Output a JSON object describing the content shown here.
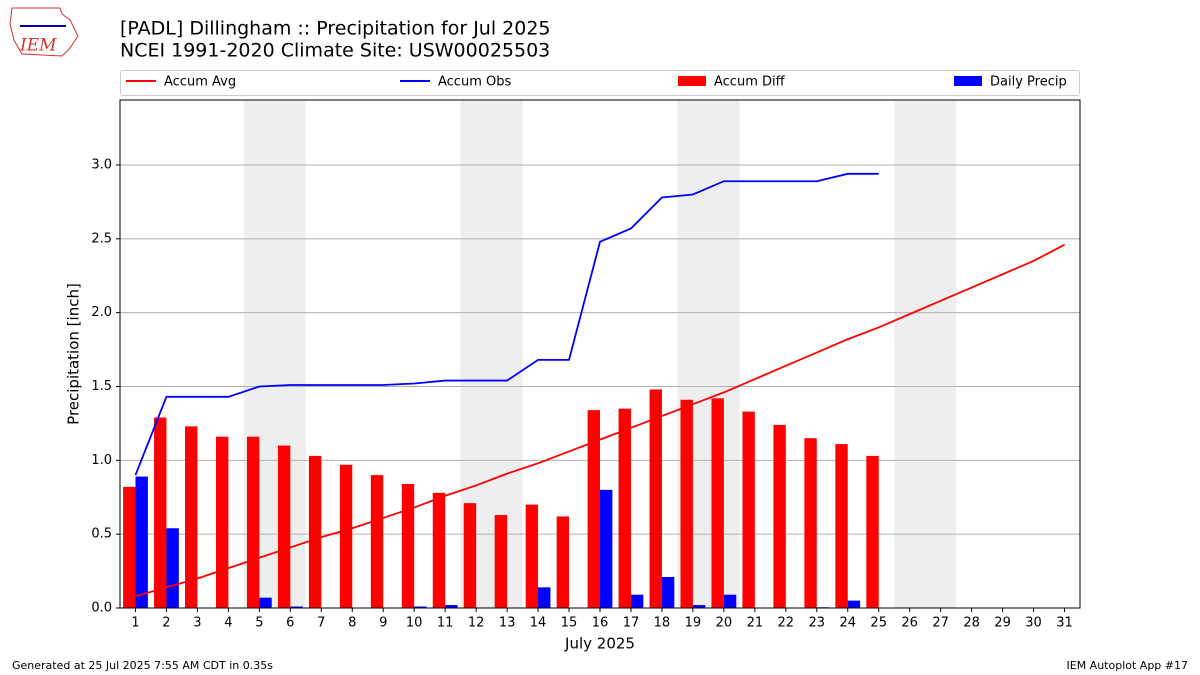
{
  "chart_data": {
    "type": "bar_line",
    "title": "[PADL] Dillingham :: Precipitation for Jul 2025",
    "subtitle": "NCEI 1991-2020 Climate Site: USW00025503",
    "logo_text": "IEM",
    "x_label": "July 2025",
    "y_label": "Precipitation [inch]",
    "footer_left": "Generated at 25 Jul 2025 7:55 AM CDT in 0.35s",
    "footer_right": "IEM Autoplot App #17",
    "x": [
      1,
      2,
      3,
      4,
      5,
      6,
      7,
      8,
      9,
      10,
      11,
      12,
      13,
      14,
      15,
      16,
      17,
      18,
      19,
      20,
      21,
      22,
      23,
      24,
      25,
      26,
      27,
      28,
      29,
      30,
      31
    ],
    "xlim": [
      0.5,
      31.5
    ],
    "xticks": [
      1,
      2,
      3,
      4,
      5,
      6,
      7,
      8,
      9,
      10,
      11,
      12,
      13,
      14,
      15,
      16,
      17,
      18,
      19,
      20,
      21,
      22,
      23,
      24,
      25,
      26,
      27,
      28,
      29,
      30,
      31
    ],
    "ylim": [
      0,
      3.44
    ],
    "yticks": [
      {
        "value": 0,
        "label": "0.0"
      },
      {
        "value": 0.5,
        "label": "0.5"
      },
      {
        "value": 1,
        "label": "1.0"
      },
      {
        "value": 1.5,
        "label": "1.5"
      },
      {
        "value": 2,
        "label": "2.0"
      },
      {
        "value": 2.5,
        "label": "2.5"
      },
      {
        "value": 3,
        "label": "3.0"
      }
    ],
    "grid": true,
    "weekend_spans": [
      [
        4.5,
        6.5
      ],
      [
        11.5,
        13.5
      ],
      [
        18.5,
        20.5
      ],
      [
        25.5,
        27.5
      ]
    ],
    "series": [
      {
        "name": "Accum Avg",
        "kind": "line",
        "color": "#ff0000",
        "values": [
          0.08,
          0.14,
          0.2,
          0.27,
          0.34,
          0.41,
          0.48,
          0.54,
          0.61,
          0.68,
          0.76,
          0.83,
          0.91,
          0.98,
          1.06,
          1.14,
          1.22,
          1.3,
          1.38,
          1.46,
          1.55,
          1.64,
          1.73,
          1.82,
          1.9,
          1.99,
          2.08,
          2.17,
          2.26,
          2.35,
          2.46
        ]
      },
      {
        "name": "Accum Obs",
        "kind": "line",
        "color": "#0000ff",
        "values": [
          0.9,
          1.43,
          1.43,
          1.43,
          1.5,
          1.51,
          1.51,
          1.51,
          1.51,
          1.52,
          1.54,
          1.54,
          1.54,
          1.68,
          1.68,
          2.48,
          2.57,
          2.78,
          2.8,
          2.89,
          2.89,
          2.89,
          2.89,
          2.94,
          2.94,
          null,
          null,
          null,
          null,
          null,
          null
        ]
      },
      {
        "name": "Accum Diff",
        "kind": "bar",
        "offset": -0.2,
        "width": 0.4,
        "color": "#ff0000",
        "values": [
          0.82,
          1.29,
          1.23,
          1.16,
          1.16,
          1.1,
          1.03,
          0.97,
          0.9,
          0.84,
          0.78,
          0.71,
          0.63,
          0.7,
          0.62,
          1.34,
          1.35,
          1.48,
          1.41,
          1.42,
          1.33,
          1.24,
          1.15,
          1.11,
          1.03,
          null,
          null,
          null,
          null,
          null,
          null
        ]
      },
      {
        "name": "Daily Precip",
        "kind": "bar",
        "offset": 0.2,
        "width": 0.4,
        "color": "#0000ff",
        "values": [
          0.89,
          0.54,
          0,
          0,
          0.07,
          0.01,
          0,
          0,
          0,
          0.01,
          0.02,
          0,
          0,
          0.14,
          0,
          0.8,
          0.09,
          0.21,
          0.02,
          0.09,
          0,
          0,
          0.005,
          0.05,
          0,
          null,
          null,
          null,
          null,
          null,
          null
        ]
      }
    ]
  }
}
